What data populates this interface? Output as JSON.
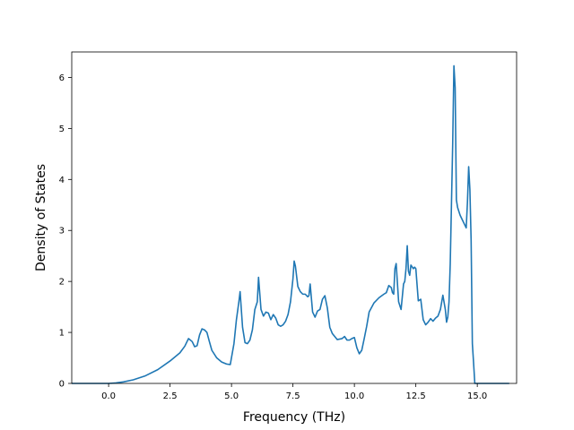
{
  "chart_data": {
    "type": "line",
    "title": "",
    "xlabel": "Frequency (THz)",
    "ylabel": "Density of States",
    "xlim": [
      -1.5,
      16.6
    ],
    "ylim": [
      0,
      6.5
    ],
    "xticks": [
      0.0,
      2.5,
      5.0,
      7.5,
      10.0,
      12.5,
      15.0
    ],
    "xtick_labels": [
      "0.0",
      "2.5",
      "5.0",
      "7.5",
      "10.0",
      "12.5",
      "15.0"
    ],
    "yticks": [
      0,
      1,
      2,
      3,
      4,
      5,
      6
    ],
    "ytick_labels": [
      "0",
      "1",
      "2",
      "3",
      "4",
      "5",
      "6"
    ],
    "grid": false,
    "line_color": "#1f77b4",
    "series": [
      {
        "x": [
          -1.5,
          -0.5,
          0.0,
          0.3,
          0.6,
          1.0,
          1.5,
          2.0,
          2.5,
          2.9,
          3.1,
          3.25,
          3.4,
          3.5,
          3.6,
          3.7,
          3.8,
          3.9,
          4.0,
          4.1,
          4.2,
          4.4,
          4.6,
          4.8,
          4.95,
          5.1,
          5.2,
          5.3,
          5.35,
          5.45,
          5.55,
          5.65,
          5.75,
          5.85,
          5.95,
          6.05,
          6.1,
          6.2,
          6.3,
          6.4,
          6.5,
          6.6,
          6.7,
          6.8,
          6.9,
          7.0,
          7.1,
          7.2,
          7.3,
          7.4,
          7.5,
          7.55,
          7.6,
          7.7,
          7.8,
          7.9,
          8.0,
          8.1,
          8.15,
          8.2,
          8.3,
          8.4,
          8.5,
          8.6,
          8.7,
          8.8,
          8.9,
          9.0,
          9.1,
          9.2,
          9.3,
          9.5,
          9.6,
          9.7,
          9.8,
          9.9,
          10.0,
          10.1,
          10.2,
          10.3,
          10.4,
          10.5,
          10.6,
          10.8,
          11.0,
          11.2,
          11.3,
          11.4,
          11.5,
          11.55,
          11.6,
          11.65,
          11.7,
          11.8,
          11.9,
          12.0,
          12.05,
          12.1,
          12.15,
          12.2,
          12.25,
          12.3,
          12.4,
          12.45,
          12.5,
          12.6,
          12.7,
          12.8,
          12.9,
          13.0,
          13.1,
          13.2,
          13.3,
          13.4,
          13.5,
          13.6,
          13.7,
          13.75,
          13.8,
          13.85,
          13.9,
          14.0,
          14.05,
          14.1,
          14.15,
          14.2,
          14.3,
          14.4,
          14.5,
          14.55,
          14.6,
          14.65,
          14.7,
          14.75,
          14.8,
          14.85,
          14.9,
          15.0,
          15.5,
          16.3
        ],
        "y": [
          0,
          0,
          0,
          0.01,
          0.03,
          0.07,
          0.15,
          0.27,
          0.44,
          0.6,
          0.73,
          0.88,
          0.82,
          0.72,
          0.74,
          0.95,
          1.07,
          1.05,
          1.0,
          0.82,
          0.65,
          0.5,
          0.42,
          0.38,
          0.37,
          0.78,
          1.25,
          1.6,
          1.8,
          1.1,
          0.8,
          0.78,
          0.85,
          1.05,
          1.45,
          1.6,
          2.08,
          1.45,
          1.32,
          1.4,
          1.38,
          1.25,
          1.35,
          1.28,
          1.15,
          1.12,
          1.15,
          1.22,
          1.35,
          1.6,
          2.05,
          2.4,
          2.3,
          1.9,
          1.8,
          1.75,
          1.75,
          1.7,
          1.72,
          1.95,
          1.4,
          1.3,
          1.42,
          1.45,
          1.65,
          1.72,
          1.48,
          1.1,
          0.98,
          0.92,
          0.86,
          0.88,
          0.92,
          0.85,
          0.85,
          0.88,
          0.9,
          0.7,
          0.58,
          0.65,
          0.88,
          1.12,
          1.4,
          1.58,
          1.68,
          1.75,
          1.78,
          1.92,
          1.88,
          1.78,
          1.75,
          2.25,
          2.35,
          1.6,
          1.45,
          1.95,
          2.0,
          2.25,
          2.7,
          2.2,
          2.12,
          2.32,
          2.25,
          2.28,
          2.25,
          1.62,
          1.65,
          1.25,
          1.15,
          1.2,
          1.27,
          1.22,
          1.28,
          1.32,
          1.45,
          1.73,
          1.45,
          1.2,
          1.3,
          1.6,
          2.35,
          4.7,
          6.23,
          5.8,
          3.6,
          3.45,
          3.3,
          3.2,
          3.1,
          3.05,
          3.55,
          4.25,
          3.8,
          2.8,
          0.78,
          0.4,
          0.0,
          0,
          0,
          0
        ]
      }
    ]
  }
}
